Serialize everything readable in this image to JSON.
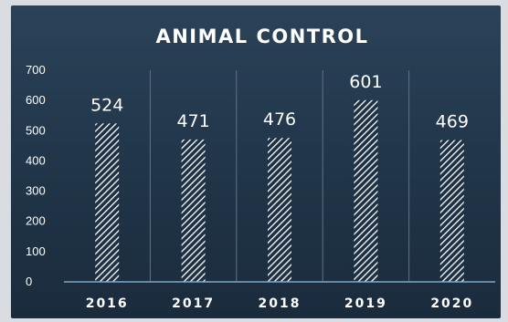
{
  "colors": {
    "text": "#ffffff",
    "bar_stripe": "#ffffff",
    "bar_background": "#1e3144",
    "gridline": "#5f7388",
    "baseline": "#7fa6c8"
  },
  "chart_data": {
    "type": "bar",
    "title": "ANIMAL CONTROL",
    "categories": [
      "2016",
      "2017",
      "2018",
      "2019",
      "2020"
    ],
    "values": [
      524,
      471,
      476,
      601,
      469
    ],
    "data_labels": [
      "524",
      "471",
      "476",
      "601",
      "469"
    ],
    "xlabel": "",
    "ylabel": "",
    "ylim": [
      0,
      700
    ],
    "yticks": [
      "0",
      "100",
      "200",
      "300",
      "400",
      "500",
      "600",
      "700"
    ],
    "grid": "vertical separators between categories",
    "legend": "none",
    "bar_fill": "diagonal hatch"
  }
}
